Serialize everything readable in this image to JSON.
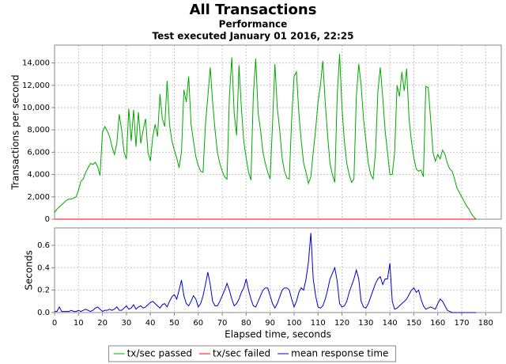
{
  "chart_data": [
    {
      "type": "line",
      "title": "All Transactions",
      "subtitles": [
        "Performance",
        "Test executed January 01 2016, 22:25"
      ],
      "ylabel": "Transactions per second",
      "grid": true,
      "legend": "bottom",
      "xlim": [
        0,
        186.5
      ],
      "ylim": [
        0,
        15600
      ],
      "yticks": [
        0,
        {
          "value": 2000,
          "label": "2,000"
        },
        {
          "value": 4000,
          "label": "4,000"
        },
        {
          "value": 6000,
          "label": "6,000"
        },
        {
          "value": 8000,
          "label": "8,000"
        },
        {
          "value": 10000,
          "label": "10,000"
        },
        {
          "value": 12000,
          "label": "12,000"
        },
        {
          "value": 14000,
          "label": "14,000"
        }
      ],
      "x": [
        0,
        1,
        2,
        3,
        4,
        5,
        6,
        7,
        8,
        9,
        10,
        11,
        12,
        13,
        14,
        15,
        16,
        17,
        18,
        19,
        20,
        21,
        22,
        23,
        24,
        25,
        26,
        27,
        28,
        29,
        30,
        31,
        32,
        33,
        34,
        35,
        36,
        37,
        38,
        39,
        40,
        41,
        42,
        43,
        44,
        45,
        46,
        47,
        48,
        49,
        50,
        51,
        52,
        53,
        54,
        55,
        56,
        57,
        58,
        59,
        60,
        61,
        62,
        63,
        64,
        65,
        66,
        67,
        68,
        69,
        70,
        71,
        72,
        73,
        74,
        75,
        76,
        77,
        78,
        79,
        80,
        81,
        82,
        83,
        84,
        85,
        86,
        87,
        88,
        89,
        90,
        91,
        92,
        93,
        94,
        95,
        96,
        97,
        98,
        99,
        100,
        101,
        102,
        103,
        104,
        105,
        106,
        107,
        108,
        109,
        110,
        111,
        112,
        113,
        114,
        115,
        116,
        117,
        118,
        119,
        120,
        121,
        122,
        123,
        124,
        125,
        126,
        127,
        128,
        129,
        130,
        131,
        132,
        133,
        134,
        135,
        136,
        137,
        138,
        139,
        140,
        141,
        142,
        143,
        144,
        145,
        146,
        147,
        148,
        149,
        150,
        151,
        152,
        153,
        154,
        155,
        156,
        157,
        158,
        159,
        160,
        161,
        162,
        163,
        164,
        165,
        166,
        167,
        168,
        169,
        170,
        171,
        172,
        173,
        174,
        175,
        176
      ],
      "series": [
        {
          "name": "tx/sec failed",
          "color": "#ff0000",
          "values": [
            0,
            0,
            0,
            0,
            0,
            0,
            0,
            0,
            0,
            0,
            0,
            0,
            0,
            0,
            0,
            0,
            0,
            0,
            0,
            0,
            0,
            0,
            0,
            0,
            0,
            0,
            0,
            0,
            0,
            0,
            0,
            0,
            0,
            0,
            0,
            0,
            0,
            0,
            0,
            0,
            0,
            0,
            0,
            0,
            0,
            0,
            0,
            0,
            0,
            0,
            0,
            0,
            0,
            0,
            0,
            0,
            0,
            0,
            0,
            0,
            0,
            0,
            0,
            0,
            0,
            0,
            0,
            0,
            0,
            0,
            0,
            0,
            0,
            0,
            0,
            0,
            0,
            0,
            0,
            0,
            0,
            0,
            0,
            0,
            0,
            0,
            0,
            0,
            0,
            0,
            0,
            0,
            0,
            0,
            0,
            0,
            0,
            0,
            0,
            0,
            0,
            0,
            0,
            0,
            0,
            0,
            0,
            0,
            0,
            0,
            0,
            0,
            0,
            0,
            0,
            0,
            0,
            0,
            0,
            0,
            0,
            0,
            0,
            0,
            0,
            0,
            0,
            0,
            0,
            0,
            0,
            0,
            0,
            0,
            0,
            0,
            0,
            0,
            0,
            0,
            0,
            0,
            0,
            0,
            0,
            0,
            0,
            0,
            0,
            0,
            0,
            0,
            0,
            0,
            0,
            0,
            0,
            0,
            0,
            0,
            0,
            0,
            0,
            0,
            0,
            0,
            0,
            0,
            0,
            0,
            0,
            0,
            0,
            0,
            0,
            0,
            0
          ]
        },
        {
          "name": "tx/sec passed",
          "color": "#00a800",
          "values": [
            600,
            900,
            1100,
            1300,
            1500,
            1700,
            1800,
            1800,
            1900,
            2000,
            2600,
            3400,
            3600,
            4200,
            4600,
            5000,
            4900,
            5100,
            4700,
            3900,
            7800,
            8300,
            7900,
            7400,
            6500,
            5800,
            6800,
            9400,
            8000,
            6000,
            5400,
            9900,
            7000,
            9800,
            6500,
            9600,
            6800,
            8000,
            9000,
            6000,
            5200,
            7400,
            8500,
            7400,
            11200,
            9000,
            8300,
            12400,
            8500,
            7000,
            6200,
            5500,
            4600,
            6000,
            11600,
            10500,
            12800,
            8500,
            7000,
            5600,
            4800,
            4300,
            4200,
            8500,
            11000,
            13600,
            10500,
            8000,
            6000,
            5000,
            4300,
            3800,
            3600,
            11000,
            14500,
            9500,
            7500,
            13800,
            10000,
            7000,
            5500,
            4200,
            3500,
            11200,
            14400,
            9500,
            8000,
            6000,
            5000,
            4200,
            3600,
            8500,
            13900,
            10000,
            8000,
            5500,
            4300,
            3700,
            3600,
            9000,
            12800,
            13200,
            9500,
            7000,
            5000,
            4200,
            3200,
            3800,
            6000,
            8000,
            10500,
            12000,
            14200,
            10500,
            7500,
            5000,
            4000,
            3300,
            11000,
            14800,
            10000,
            7000,
            5000,
            4000,
            3300,
            3600,
            11000,
            13900,
            12000,
            9000,
            7000,
            5000,
            4000,
            3600,
            6000,
            11500,
            13600,
            11000,
            8000,
            6000,
            4000,
            4000,
            6000,
            12000,
            11000,
            13200,
            11500,
            13500,
            9000,
            7000,
            5500,
            4500,
            4300,
            4400,
            3800,
            11900,
            11800,
            9000,
            6000,
            5200,
            5800,
            5400,
            6200,
            5800,
            5000,
            4500,
            4300,
            3600,
            2800,
            2400,
            2000,
            1600,
            1200,
            900,
            500,
            200,
            0
          ]
        }
      ]
    },
    {
      "type": "line",
      "ylabel": "Seconds",
      "xlabel": "Elapsed time, seconds",
      "grid": true,
      "xlim": [
        0,
        186.5
      ],
      "ylim": [
        0,
        0.755
      ],
      "xticks": [
        0,
        10,
        20,
        30,
        40,
        50,
        60,
        70,
        80,
        90,
        100,
        110,
        120,
        130,
        140,
        150,
        160,
        170,
        180
      ],
      "yticks": [
        {
          "value": 0,
          "label": "0.0"
        },
        0.2,
        0.4,
        0.6
      ],
      "x": [
        0,
        1,
        2,
        3,
        4,
        5,
        6,
        7,
        8,
        9,
        10,
        11,
        12,
        13,
        14,
        15,
        16,
        17,
        18,
        19,
        20,
        21,
        22,
        23,
        24,
        25,
        26,
        27,
        28,
        29,
        30,
        31,
        32,
        33,
        34,
        35,
        36,
        37,
        38,
        39,
        40,
        41,
        42,
        43,
        44,
        45,
        46,
        47,
        48,
        49,
        50,
        51,
        52,
        53,
        54,
        55,
        56,
        57,
        58,
        59,
        60,
        61,
        62,
        63,
        64,
        65,
        66,
        67,
        68,
        69,
        70,
        71,
        72,
        73,
        74,
        75,
        76,
        77,
        78,
        79,
        80,
        81,
        82,
        83,
        84,
        85,
        86,
        87,
        88,
        89,
        90,
        91,
        92,
        93,
        94,
        95,
        96,
        97,
        98,
        99,
        100,
        101,
        102,
        103,
        104,
        105,
        106,
        107,
        108,
        109,
        110,
        111,
        112,
        113,
        114,
        115,
        116,
        117,
        118,
        119,
        120,
        121,
        122,
        123,
        124,
        125,
        126,
        127,
        128,
        129,
        130,
        131,
        132,
        133,
        134,
        135,
        136,
        137,
        138,
        139,
        140,
        141,
        142,
        143,
        144,
        145,
        146,
        147,
        148,
        149,
        150,
        151,
        152,
        153,
        154,
        155,
        156,
        157,
        158,
        159,
        160,
        161,
        162,
        163,
        164,
        165,
        166,
        167,
        168,
        169,
        170,
        171,
        172,
        173,
        174,
        175,
        176
      ],
      "series": [
        {
          "name": "mean response time",
          "color": "#0000cc",
          "values": [
            0.01,
            0.01,
            0.05,
            0.01,
            0.01,
            0.01,
            0.01,
            0.02,
            0.01,
            0.01,
            0.02,
            0.01,
            0.02,
            0.03,
            0.02,
            0.01,
            0.02,
            0.04,
            0.05,
            0.03,
            0.01,
            0.02,
            0.02,
            0.03,
            0.02,
            0.03,
            0.05,
            0.02,
            0.02,
            0.04,
            0.06,
            0.03,
            0.04,
            0.07,
            0.03,
            0.05,
            0.06,
            0.04,
            0.05,
            0.07,
            0.09,
            0.1,
            0.08,
            0.06,
            0.04,
            0.07,
            0.08,
            0.05,
            0.1,
            0.14,
            0.16,
            0.12,
            0.2,
            0.29,
            0.15,
            0.08,
            0.06,
            0.1,
            0.15,
            0.12,
            0.05,
            0.08,
            0.15,
            0.25,
            0.36,
            0.25,
            0.1,
            0.06,
            0.06,
            0.1,
            0.15,
            0.2,
            0.26,
            0.2,
            0.12,
            0.06,
            0.08,
            0.12,
            0.18,
            0.22,
            0.3,
            0.2,
            0.12,
            0.06,
            0.05,
            0.1,
            0.15,
            0.2,
            0.22,
            0.22,
            0.15,
            0.08,
            0.04,
            0.08,
            0.14,
            0.2,
            0.22,
            0.22,
            0.2,
            0.12,
            0.05,
            0.1,
            0.18,
            0.22,
            0.2,
            0.3,
            0.45,
            0.71,
            0.3,
            0.15,
            0.05,
            0.04,
            0.06,
            0.12,
            0.2,
            0.3,
            0.35,
            0.4,
            0.28,
            0.08,
            0.05,
            0.06,
            0.1,
            0.18,
            0.24,
            0.3,
            0.38,
            0.3,
            0.1,
            0.05,
            0.04,
            0.08,
            0.14,
            0.2,
            0.26,
            0.3,
            0.32,
            0.25,
            0.3,
            0.3,
            0.44,
            0.1,
            0.03,
            0.04,
            0.06,
            0.08,
            0.1,
            0.12,
            0.16,
            0.2,
            0.22,
            0.18,
            0.2,
            0.12,
            0.06,
            0.03,
            0.04,
            0.05,
            0.04,
            0.03,
            0.08,
            0.12,
            0.1,
            0.06,
            0.02,
            0.01,
            0,
            0,
            0,
            0,
            0,
            0,
            0,
            0,
            0,
            0,
            0
          ]
        }
      ]
    }
  ]
}
